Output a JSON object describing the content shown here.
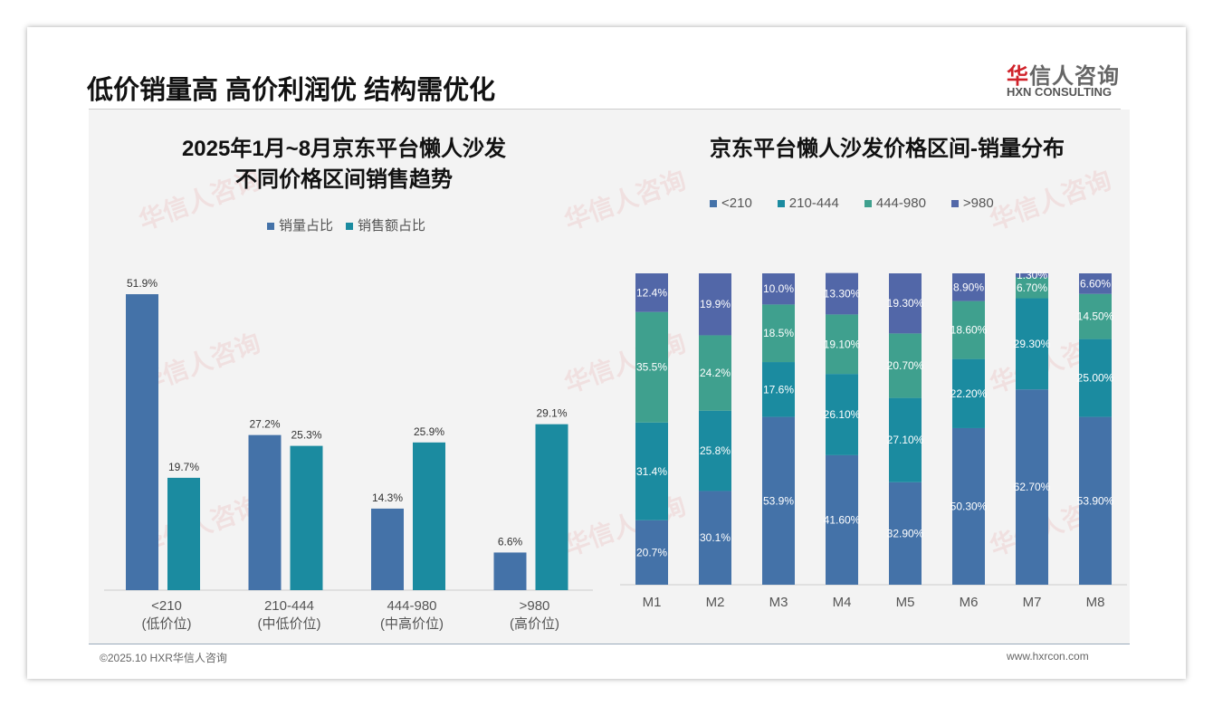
{
  "header": {
    "title": "低价销量高 高价利润优 结构需优化",
    "logo_cn_red": "华",
    "logo_cn": "信人咨询",
    "logo_en": "HXN CONSULTING"
  },
  "footer": {
    "copyright": "©2025.10 HXR华信人咨询",
    "url": "www.hxrcon.com"
  },
  "chart_data": [
    {
      "type": "bar",
      "title_line1": "2025年1月~8月京东平台懒人沙发",
      "title_line2": "不同价格区间销售趋势",
      "categories": [
        "<210",
        "210-444",
        "444-980",
        ">980"
      ],
      "sublabels": [
        "(低价位)",
        "(中低价位)",
        "(中高价位)",
        "(高价位)"
      ],
      "series": [
        {
          "name": "销量占比",
          "color": "#4472a8",
          "values": [
            51.9,
            27.2,
            14.3,
            6.6
          ],
          "labels": [
            "51.9%",
            "27.2%",
            "14.3%",
            "6.6%"
          ]
        },
        {
          "name": "销售额占比",
          "color": "#1b8ba0",
          "values": [
            19.7,
            25.3,
            25.9,
            29.1
          ],
          "labels": [
            "19.7%",
            "25.3%",
            "25.9%",
            "29.1%"
          ]
        }
      ],
      "ylim": [
        0,
        55
      ]
    },
    {
      "type": "stacked_bar",
      "title": "京东平台懒人沙发价格区间-销量分布",
      "categories": [
        "M1",
        "M2",
        "M3",
        "M4",
        "M5",
        "M6",
        "M7",
        "M8"
      ],
      "series": [
        {
          "name": "<210",
          "color": "#4472a8",
          "values": [
            20.7,
            30.1,
            53.9,
            41.6,
            32.9,
            50.3,
            62.7,
            53.9
          ],
          "labels": [
            "20.7%",
            "30.1%",
            "53.9%",
            "41.60%",
            "32.90%",
            "50.30%",
            "62.70%",
            "53.90%"
          ]
        },
        {
          "name": "210-444",
          "color": "#1b8ba0",
          "values": [
            31.4,
            25.8,
            17.6,
            26.1,
            27.1,
            22.2,
            29.3,
            25.0
          ],
          "labels": [
            "31.4%",
            "25.8%",
            "17.6%",
            "26.10%",
            "27.10%",
            "22.20%",
            "29.30%",
            "25.00%"
          ]
        },
        {
          "name": "444-980",
          "color": "#3fa08e",
          "values": [
            35.5,
            24.2,
            18.5,
            19.1,
            20.7,
            18.6,
            6.7,
            14.5
          ],
          "labels": [
            "35.5%",
            "24.2%",
            "18.5%",
            "19.10%",
            "20.70%",
            "18.60%",
            "6.70%",
            "14.50%"
          ]
        },
        {
          "name": ">980",
          "color": "#5267a8",
          "values": [
            12.4,
            19.9,
            10.0,
            13.3,
            19.3,
            8.9,
            1.3,
            6.6
          ],
          "labels": [
            "12.4%",
            "19.9%",
            "10.0%",
            "13.30%",
            "19.30%",
            "8.90%",
            "1.30%",
            "6.60%"
          ]
        }
      ],
      "ylim": [
        0,
        100
      ]
    }
  ]
}
